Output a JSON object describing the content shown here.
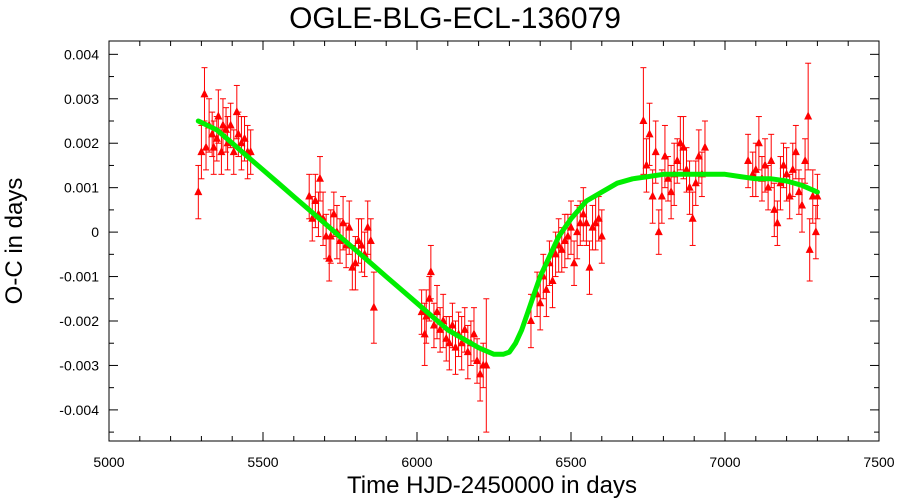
{
  "chart_data": {
    "type": "scatter",
    "title": "OGLE-BLG-ECL-136079",
    "xlabel": "Time HJD-2450000 in days",
    "ylabel": "O-C in days",
    "xlim": [
      5000,
      7500
    ],
    "ylim": [
      -0.0047,
      0.0043
    ],
    "x_ticks": [
      5000,
      5500,
      6000,
      6500,
      7000,
      7500
    ],
    "x_tick_labels": [
      "5000",
      "5500",
      "6000",
      "6500",
      "7000",
      "7500"
    ],
    "y_ticks": [
      0.004,
      0.003,
      0.002,
      0.001,
      0,
      -0.001,
      -0.002,
      -0.003,
      -0.004
    ],
    "y_tick_labels": [
      "0.004",
      "0.003",
      "0.002",
      "0.001",
      "0",
      "-0.001",
      "-0.002",
      "-0.003",
      "-0.004"
    ],
    "grid": false,
    "marker_color": "#ff0000",
    "fit_color": "#00ee00",
    "series": [
      {
        "type": "errorbar",
        "points": [
          [
            5290,
            0.0009,
            0.0006
          ],
          [
            5300,
            0.0018,
            0.0006
          ],
          [
            5310,
            0.0031,
            0.0006
          ],
          [
            5315,
            0.0019,
            0.0005
          ],
          [
            5325,
            0.0024,
            0.0006
          ],
          [
            5335,
            0.0022,
            0.0005
          ],
          [
            5340,
            0.0019,
            0.0006
          ],
          [
            5350,
            0.0021,
            0.0005
          ],
          [
            5355,
            0.0026,
            0.0006
          ],
          [
            5365,
            0.0018,
            0.0005
          ],
          [
            5370,
            0.0024,
            0.0006
          ],
          [
            5380,
            0.0023,
            0.0005
          ],
          [
            5385,
            0.002,
            0.0006
          ],
          [
            5395,
            0.0024,
            0.0005
          ],
          [
            5405,
            0.0018,
            0.0005
          ],
          [
            5415,
            0.0027,
            0.0006
          ],
          [
            5420,
            0.0022,
            0.0005
          ],
          [
            5430,
            0.002,
            0.0006
          ],
          [
            5440,
            0.0021,
            0.0005
          ],
          [
            5450,
            0.0018,
            0.0006
          ],
          [
            5460,
            0.0018,
            0.0005
          ],
          [
            5650,
            0.0008,
            0.0005
          ],
          [
            5660,
            0.0003,
            0.0005
          ],
          [
            5670,
            0.0007,
            0.0006
          ],
          [
            5680,
            0.0004,
            0.0005
          ],
          [
            5685,
            0.0012,
            0.0005
          ],
          [
            5695,
            0.0003,
            0.0006
          ],
          [
            5705,
            -0.0001,
            0.0005
          ],
          [
            5715,
            -0.0006,
            0.0005
          ],
          [
            5720,
            -0.0001,
            0.0006
          ],
          [
            5730,
            0.0004,
            0.0005
          ],
          [
            5740,
            0.0,
            0.0006
          ],
          [
            5750,
            -0.0002,
            0.0005
          ],
          [
            5760,
            0.0002,
            0.0006
          ],
          [
            5770,
            -0.0003,
            0.0005
          ],
          [
            5780,
            0.0001,
            0.0006
          ],
          [
            5790,
            -0.0008,
            0.0005
          ],
          [
            5800,
            -0.0007,
            0.0006
          ],
          [
            5810,
            -0.0002,
            0.0005
          ],
          [
            5820,
            -0.0003,
            0.0006
          ],
          [
            5830,
            -0.0005,
            0.0005
          ],
          [
            5840,
            0.0001,
            0.0006
          ],
          [
            5850,
            -0.0002,
            0.0005
          ],
          [
            5860,
            -0.0017,
            0.0008
          ],
          [
            6015,
            -0.0018,
            0.0005
          ],
          [
            6025,
            -0.0023,
            0.0007
          ],
          [
            6030,
            -0.0019,
            0.0006
          ],
          [
            6040,
            -0.0015,
            0.0005
          ],
          [
            6045,
            -0.0009,
            0.0006
          ],
          [
            6055,
            -0.0021,
            0.0005
          ],
          [
            6065,
            -0.0018,
            0.0006
          ],
          [
            6075,
            -0.0022,
            0.0005
          ],
          [
            6085,
            -0.002,
            0.0006
          ],
          [
            6095,
            -0.0024,
            0.0005
          ],
          [
            6105,
            -0.0025,
            0.0006
          ],
          [
            6115,
            -0.0021,
            0.0005
          ],
          [
            6125,
            -0.0026,
            0.0006
          ],
          [
            6135,
            -0.0023,
            0.0005
          ],
          [
            6145,
            -0.0025,
            0.0006
          ],
          [
            6155,
            -0.0022,
            0.0005
          ],
          [
            6165,
            -0.0027,
            0.0006
          ],
          [
            6175,
            -0.0025,
            0.0005
          ],
          [
            6185,
            -0.0023,
            0.0006
          ],
          [
            6195,
            -0.0029,
            0.0005
          ],
          [
            6205,
            -0.0032,
            0.0006
          ],
          [
            6215,
            -0.003,
            0.0005
          ],
          [
            6225,
            -0.003,
            0.0015
          ],
          [
            6370,
            -0.002,
            0.0006
          ],
          [
            6390,
            -0.0014,
            0.0005
          ],
          [
            6400,
            -0.0016,
            0.0006
          ],
          [
            6410,
            -0.001,
            0.0005
          ],
          [
            6420,
            -0.0013,
            0.0006
          ],
          [
            6430,
            -0.0007,
            0.0005
          ],
          [
            6440,
            -0.0011,
            0.0006
          ],
          [
            6450,
            -0.0005,
            0.0005
          ],
          [
            6460,
            -0.0003,
            0.0006
          ],
          [
            6470,
            -0.0004,
            0.0005
          ],
          [
            6480,
            -0.0002,
            0.0006
          ],
          [
            6490,
            -0.0001,
            0.0005
          ],
          [
            6500,
            0.0001,
            0.0006
          ],
          [
            6510,
            -0.0007,
            0.0005
          ],
          [
            6520,
            0.0,
            0.0006
          ],
          [
            6530,
            0.0002,
            0.0005
          ],
          [
            6540,
            0.0004,
            0.0006
          ],
          [
            6550,
            0.0002,
            0.0005
          ],
          [
            6560,
            -0.0008,
            0.0006
          ],
          [
            6570,
            0.0001,
            0.0005
          ],
          [
            6580,
            0.0002,
            0.0006
          ],
          [
            6590,
            0.0003,
            0.0005
          ],
          [
            6600,
            -0.0001,
            0.0006
          ],
          [
            6735,
            0.0025,
            0.0012
          ],
          [
            6745,
            0.0015,
            0.0006
          ],
          [
            6755,
            0.0022,
            0.0007
          ],
          [
            6765,
            0.0008,
            0.0006
          ],
          [
            6775,
            0.0018,
            0.0007
          ],
          [
            6785,
            0.0,
            0.0005
          ],
          [
            6795,
            0.0008,
            0.0006
          ],
          [
            6805,
            0.0017,
            0.0007
          ],
          [
            6815,
            0.0012,
            0.0005
          ],
          [
            6825,
            0.0009,
            0.0006
          ],
          [
            6835,
            0.0013,
            0.0007
          ],
          [
            6845,
            0.0016,
            0.0005
          ],
          [
            6855,
            0.002,
            0.0006
          ],
          [
            6865,
            0.0019,
            0.0007
          ],
          [
            6875,
            0.0014,
            0.0005
          ],
          [
            6885,
            0.001,
            0.0006
          ],
          [
            6895,
            0.0003,
            0.0006
          ],
          [
            6905,
            0.0011,
            0.0005
          ],
          [
            6915,
            0.0017,
            0.0006
          ],
          [
            6925,
            0.0013,
            0.0005
          ],
          [
            6935,
            0.0019,
            0.0006
          ],
          [
            7075,
            0.0016,
            0.0006
          ],
          [
            7090,
            0.0013,
            0.0005
          ],
          [
            7100,
            0.0014,
            0.0006
          ],
          [
            7110,
            0.002,
            0.0006
          ],
          [
            7120,
            0.0012,
            0.0005
          ],
          [
            7130,
            0.0015,
            0.0006
          ],
          [
            7140,
            0.001,
            0.0005
          ],
          [
            7150,
            0.0016,
            0.0006
          ],
          [
            7160,
            0.0005,
            0.0006
          ],
          [
            7170,
            0.0002,
            0.0005
          ],
          [
            7180,
            0.0011,
            0.0006
          ],
          [
            7190,
            0.0015,
            0.0005
          ],
          [
            7200,
            0.0013,
            0.0006
          ],
          [
            7210,
            0.0008,
            0.0005
          ],
          [
            7220,
            0.0014,
            0.0006
          ],
          [
            7230,
            0.0018,
            0.0006
          ],
          [
            7240,
            0.0009,
            0.0005
          ],
          [
            7250,
            0.0006,
            0.0006
          ],
          [
            7260,
            0.0016,
            0.0005
          ],
          [
            7270,
            0.0026,
            0.0012
          ],
          [
            7275,
            -0.0004,
            0.0007
          ],
          [
            7285,
            0.0008,
            0.0006
          ],
          [
            7295,
            0.0,
            0.0006
          ],
          [
            7300,
            0.0008,
            0.0005
          ]
        ]
      },
      {
        "type": "fit",
        "x": [
          5290,
          5350,
          5400,
          5450,
          5500,
          5550,
          5600,
          5650,
          5700,
          5750,
          5800,
          5850,
          5900,
          5950,
          6000,
          6050,
          6100,
          6150,
          6200,
          6250,
          6280,
          6300,
          6320,
          6340,
          6360,
          6380,
          6400,
          6420,
          6440,
          6460,
          6480,
          6500,
          6550,
          6600,
          6650,
          6700,
          6750,
          6800,
          6850,
          6900,
          6950,
          7000,
          7050,
          7100,
          7150,
          7200,
          7250,
          7300
        ],
        "y": [
          0.0025,
          0.0023,
          0.002,
          0.0017,
          0.0014,
          0.0011,
          0.0008,
          0.0005,
          0.0002,
          -0.0001,
          -0.0004,
          -0.0007,
          -0.001,
          -0.0013,
          -0.0016,
          -0.0019,
          -0.0022,
          -0.0024,
          -0.0026,
          -0.00275,
          -0.00275,
          -0.0027,
          -0.0025,
          -0.0022,
          -0.0018,
          -0.0014,
          -0.001,
          -0.0007,
          -0.0004,
          -0.0001,
          0.0001,
          0.0003,
          0.0007,
          0.0009,
          0.0011,
          0.0012,
          0.00125,
          0.0013,
          0.0013,
          0.0013,
          0.0013,
          0.0013,
          0.00125,
          0.0012,
          0.0012,
          0.00115,
          0.00105,
          0.0009
        ]
      }
    ]
  }
}
